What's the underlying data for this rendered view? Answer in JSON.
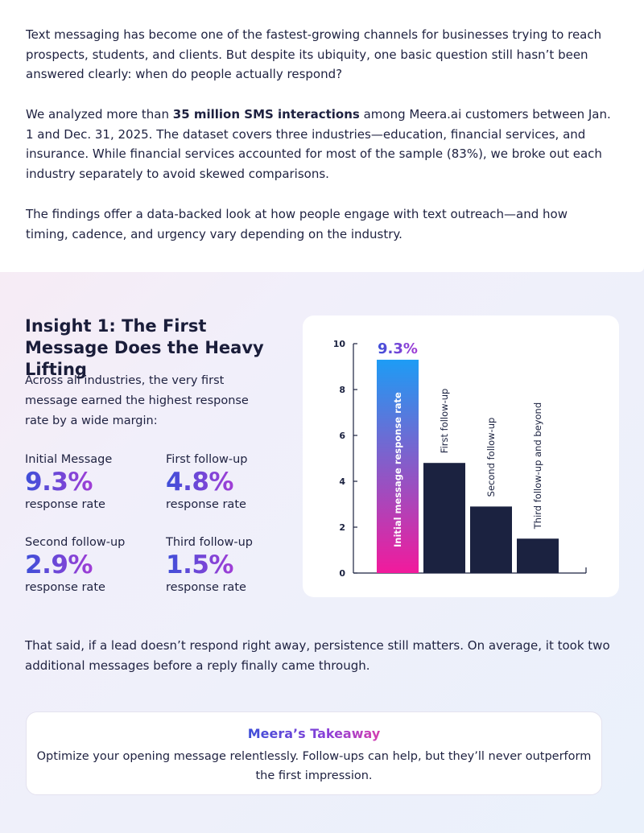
{
  "intro": {
    "p1": "Text messaging has become one of the fastest-growing channels for businesses trying to reach prospects, students, and clients. But despite its ubiquity, one basic question still hasn’t been answered clearly: when do people actually respond?",
    "p2_before": "We analyzed more than ",
    "p2_bold": "35 million SMS interactions",
    "p2_after": " among Meera.ai customers between Jan. 1 and Dec. 31, 2025. The dataset covers three industries—education, financial services, and insurance. While financial services accounted for most of the sample (83%), we broke out each industry separately to avoid skewed comparisons.",
    "p3": "The findings offer a data-backed look at how people engage with text outreach—and how timing, cadence, and urgency vary depending on the industry."
  },
  "insight": {
    "title": "Insight 1: The First Message Does the Heavy Lifting",
    "description": "Across all industries, the very first message earned the highest response rate by a wide margin:",
    "stats": [
      {
        "label": "Initial Message",
        "value": "9.3%",
        "sub": "response rate"
      },
      {
        "label": "First follow-up",
        "value": "4.8%",
        "sub": "response rate"
      },
      {
        "label": "Second follow-up",
        "value": "2.9%",
        "sub": "response rate"
      },
      {
        "label": "Third follow-up",
        "value": "1.5%",
        "sub": "response rate"
      }
    ]
  },
  "chart_data": {
    "type": "bar",
    "categories": [
      "Initial message response rate",
      "First follow-up",
      "Second follow-up",
      "Third follow-up and beyond"
    ],
    "values": [
      9.3,
      4.8,
      2.9,
      1.5
    ],
    "ylim": [
      0,
      10
    ],
    "yticks": [
      "0",
      "2",
      "4",
      "6",
      "8",
      "10"
    ],
    "data_label": "9.3%",
    "colors": {
      "highlight_top": "#1d9cf5",
      "highlight_bottom": "#f21a9c",
      "bar": "#1b2240",
      "axis": "#1b2240"
    }
  },
  "after": "That said, if a lead doesn’t respond right away, persistence still matters. On average, it took two additional messages before a reply finally came through.",
  "takeaway": {
    "title": "Meera’s Takeaway",
    "body": "Optimize your opening message relentlessly. Follow-ups can help, but they’ll never outperform the first impression."
  }
}
